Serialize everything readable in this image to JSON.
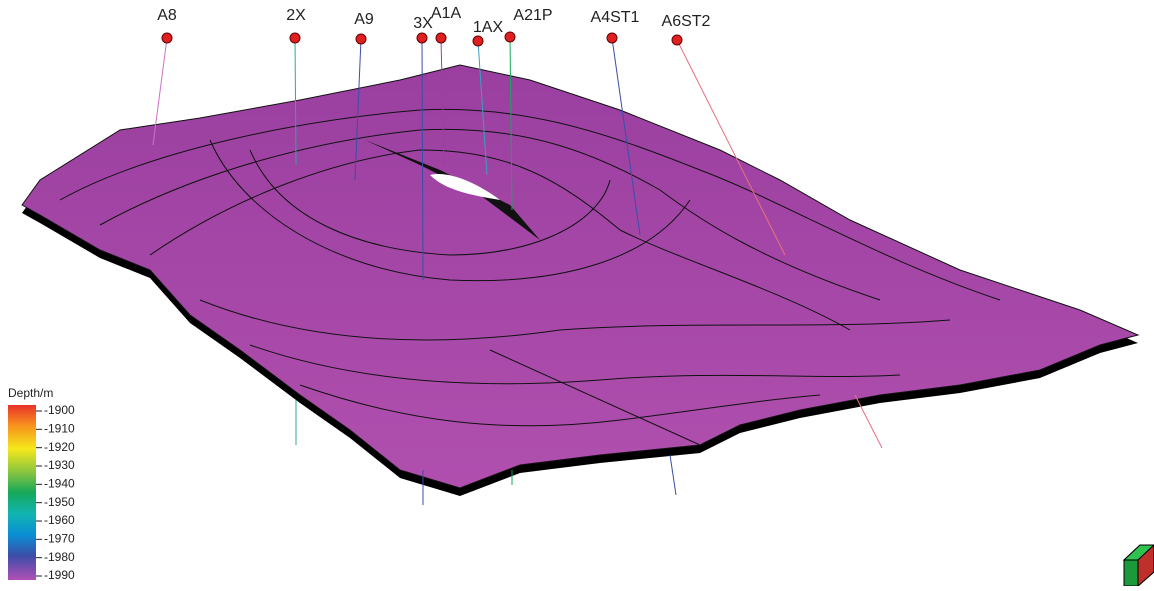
{
  "wells": [
    "A8",
    "2X",
    "A9",
    "3X",
    "A1A",
    "1AX",
    "A21P",
    "A4ST1",
    "A6ST2"
  ],
  "legend": {
    "title": "Depth/m",
    "ticks": [
      -1900,
      -1910,
      -1920,
      -1930,
      -1940,
      -1950,
      -1960,
      -1970,
      -1980,
      -1990
    ]
  }
}
